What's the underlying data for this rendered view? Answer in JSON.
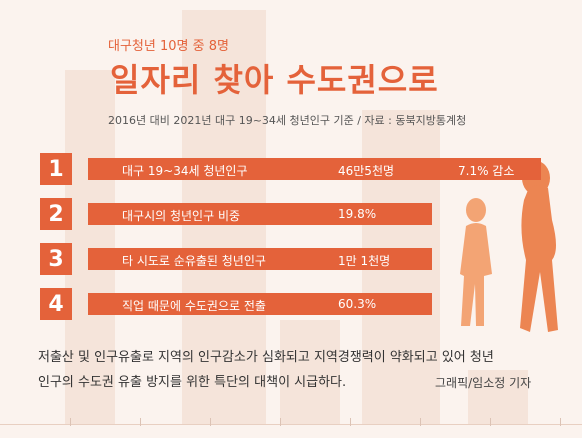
{
  "header": {
    "kicker": "대구청년 10명 중 8명",
    "title": "일자리 찾아 수도권으로",
    "subtitle": "2016년 대비 2021년 대구 19~34세 청년인구 기준 / 자료 : 동북지방통계청"
  },
  "rows": [
    {
      "number": "1",
      "label": "대구 19~34세 청년인구",
      "value": "46만5천명",
      "extra": "7.1% 감소"
    },
    {
      "number": "2",
      "label": "대구시의 청년인구 비중",
      "value": "19.8%",
      "extra": ""
    },
    {
      "number": "3",
      "label": "타 시도로 순유출된 청년인구",
      "value": "1만 1천명",
      "extra": ""
    },
    {
      "number": "4",
      "label": "직업 때문에 수도권으로 전출",
      "value": "60.3%",
      "extra": ""
    }
  ],
  "note": {
    "line1": "저출산 및 인구유출로 지역의 인구감소가 심화되고 지역경쟁력이 약화되고 있어  청년",
    "line2": "인구의 수도권 유출 방지를 위한 특단의 대책이 시급하다."
  },
  "credit": "그래픽/임소정 기자",
  "colors": {
    "accent": "#e4623a",
    "background": "#fbf3ee",
    "figure_light": "#f3a474",
    "figure_dark": "#ec8552"
  }
}
